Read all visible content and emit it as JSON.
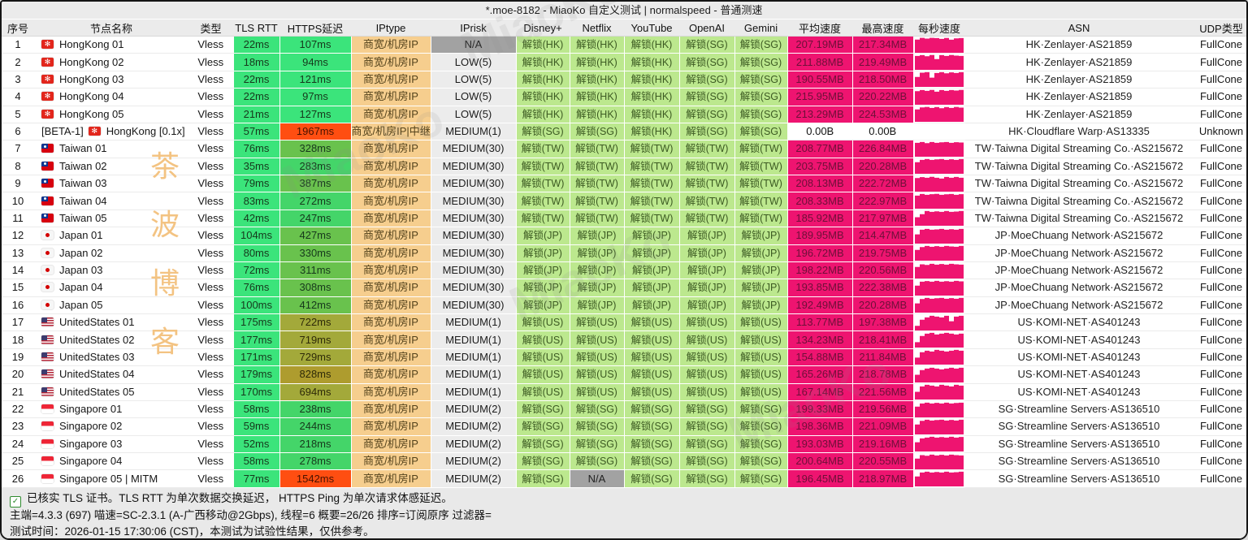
{
  "window": {
    "title": "*.moe-8182 - MiaoKo 自定义测试 | normalspeed - 普通测速"
  },
  "table": {
    "columns": [
      "序号",
      "节点名称",
      "类型",
      "TLS RTT",
      "HTTPS延迟",
      "IPtype",
      "IPrisk",
      "Disney+",
      "Netflix",
      "YouTube",
      "OpenAI",
      "Gemini",
      "平均速度",
      "最高速度",
      "每秒速度",
      "ASN",
      "UDP类型"
    ],
    "rows": [
      {
        "no": "1",
        "flag": "hk",
        "name": "HongKong 01",
        "type": "Vless",
        "tls": "22ms",
        "https": "107ms",
        "https_c": "g1",
        "iptype": "商宽/机房IP",
        "iprisk": "N/A",
        "svc": [
          "解锁(HK)",
          "解锁(HK)",
          "解锁(HK)",
          "解锁(SG)",
          "解锁(SG)"
        ],
        "avg": "207.19MB",
        "max": "217.34MB",
        "spark": [
          0.86,
          0.97,
          0.92,
          0.97,
          0.95,
          0.9,
          0.96,
          0.85,
          0.93,
          0.95
        ],
        "asn": "HK·Zenlayer·AS21859",
        "udp": "FullCone"
      },
      {
        "no": "2",
        "flag": "hk",
        "name": "HongKong 02",
        "type": "Vless",
        "tls": "18ms",
        "https": "94ms",
        "https_c": "g1",
        "iptype": "商宽/机房IP",
        "iprisk": "LOW(5)",
        "svc": [
          "解锁(HK)",
          "解锁(HK)",
          "解锁(HK)",
          "解锁(SG)",
          "解锁(SG)"
        ],
        "avg": "211.88MB",
        "max": "219.49MB",
        "spark": [
          0.9,
          0.95,
          0.88,
          0.96,
          0.7,
          0.95,
          0.9,
          0.96,
          0.92,
          0.9
        ],
        "asn": "HK·Zenlayer·AS21859",
        "udp": "FullCone"
      },
      {
        "no": "3",
        "flag": "hk",
        "name": "HongKong 03",
        "type": "Vless",
        "tls": "22ms",
        "https": "121ms",
        "https_c": "g1",
        "iptype": "商宽/机房IP",
        "iprisk": "LOW(5)",
        "svc": [
          "解锁(HK)",
          "解锁(HK)",
          "解锁(HK)",
          "解锁(SG)",
          "解锁(SG)"
        ],
        "avg": "190.55MB",
        "max": "218.50MB",
        "spark": [
          0.65,
          0.92,
          0.95,
          0.6,
          0.9,
          0.95,
          0.88,
          0.94,
          0.9,
          0.95
        ],
        "asn": "HK·Zenlayer·AS21859",
        "udp": "FullCone"
      },
      {
        "no": "4",
        "flag": "hk",
        "name": "HongKong 04",
        "type": "Vless",
        "tls": "22ms",
        "https": "97ms",
        "https_c": "g1",
        "iptype": "商宽/机房IP",
        "iprisk": "LOW(5)",
        "svc": [
          "解锁(HK)",
          "解锁(HK)",
          "解锁(HK)",
          "解锁(SG)",
          "解锁(SG)"
        ],
        "avg": "215.95MB",
        "max": "220.22MB",
        "spark": [
          0.88,
          0.95,
          0.9,
          0.96,
          0.85,
          0.95,
          0.9,
          0.95,
          0.92,
          0.96
        ],
        "asn": "HK·Zenlayer·AS21859",
        "udp": "FullCone"
      },
      {
        "no": "5",
        "flag": "hk",
        "name": "HongKong 05",
        "type": "Vless",
        "tls": "21ms",
        "https": "127ms",
        "https_c": "g1",
        "iptype": "商宽/机房IP",
        "iprisk": "LOW(5)",
        "svc": [
          "解锁(HK)",
          "解锁(HK)",
          "解锁(HK)",
          "解锁(SG)",
          "解锁(SG)"
        ],
        "avg": "213.29MB",
        "max": "224.53MB",
        "spark": [
          0.8,
          0.93,
          0.96,
          0.9,
          0.95,
          0.88,
          0.95,
          0.9,
          0.96,
          0.92
        ],
        "asn": "HK·Zenlayer·AS21859",
        "udp": "FullCone"
      },
      {
        "no": "6",
        "pre": "[BETA-1]",
        "flag": "hk",
        "name": "HongKong [0.1x]",
        "type": "Vless",
        "tls": "57ms",
        "https": "1967ms",
        "https_c": "red",
        "iptype": "商宽/机房IP|中继",
        "iprisk": "MEDIUM(1)",
        "svc": [
          "解锁(SG)",
          "解锁(SG)",
          "解锁(HK)",
          "解锁(SG)",
          "解锁(SG)"
        ],
        "avg": "0.00B",
        "max": "0.00B",
        "spark": [],
        "asn": "HK·Cloudflare Warp·AS13335",
        "udp": "Unknown"
      },
      {
        "no": "7",
        "flag": "tw",
        "name": "Taiwan 01",
        "type": "Vless",
        "tls": "76ms",
        "https": "328ms",
        "https_c": "g3",
        "iptype": "商宽/机房IP",
        "iprisk": "MEDIUM(30)",
        "svc": [
          "解锁(TW)",
          "解锁(TW)",
          "解锁(TW)",
          "解锁(TW)",
          "解锁(TW)"
        ],
        "avg": "208.77MB",
        "max": "226.84MB",
        "spark": [
          0.9,
          0.95,
          0.88,
          0.95,
          0.9,
          0.93,
          0.95,
          0.9,
          0.94,
          0.92
        ],
        "asn": "TW·Taiwna Digital Streaming Co.·AS215672",
        "udp": "FullCone"
      },
      {
        "no": "8",
        "flag": "tw",
        "name": "Taiwan 02",
        "type": "Vless",
        "tls": "35ms",
        "https": "283ms",
        "https_c": "g2",
        "iptype": "商宽/机房IP",
        "iprisk": "MEDIUM(30)",
        "svc": [
          "解锁(TW)",
          "解锁(TW)",
          "解锁(TW)",
          "解锁(TW)",
          "解锁(TW)"
        ],
        "avg": "203.75MB",
        "max": "220.28MB",
        "spark": [
          0.75,
          0.9,
          0.95,
          0.9,
          0.93,
          0.95,
          0.9,
          0.94,
          0.9,
          0.95
        ],
        "asn": "TW·Taiwna Digital Streaming Co.·AS215672",
        "udp": "FullCone"
      },
      {
        "no": "9",
        "flag": "tw",
        "name": "Taiwan 03",
        "type": "Vless",
        "tls": "79ms",
        "https": "387ms",
        "https_c": "g3",
        "iptype": "商宽/机房IP",
        "iprisk": "MEDIUM(30)",
        "svc": [
          "解锁(TW)",
          "解锁(TW)",
          "解锁(TW)",
          "解锁(TW)",
          "解锁(TW)"
        ],
        "avg": "208.13MB",
        "max": "222.72MB",
        "spark": [
          0.88,
          0.94,
          0.9,
          0.96,
          0.9,
          0.85,
          0.95,
          0.9,
          0.95,
          0.9
        ],
        "asn": "TW·Taiwna Digital Streaming Co.·AS215672",
        "udp": "FullCone"
      },
      {
        "no": "10",
        "flag": "tw",
        "name": "Taiwan 04",
        "type": "Vless",
        "tls": "83ms",
        "https": "272ms",
        "https_c": "g2",
        "iptype": "商宽/机房IP",
        "iprisk": "MEDIUM(30)",
        "svc": [
          "解锁(TW)",
          "解锁(TW)",
          "解锁(TW)",
          "解锁(TW)",
          "解锁(TW)"
        ],
        "avg": "208.33MB",
        "max": "222.97MB",
        "spark": [
          0.85,
          0.95,
          0.9,
          0.94,
          0.96,
          0.9,
          0.93,
          0.95,
          0.9,
          0.94
        ],
        "asn": "TW·Taiwna Digital Streaming Co.·AS215672",
        "udp": "FullCone"
      },
      {
        "no": "11",
        "flag": "tw",
        "name": "Taiwan 05",
        "type": "Vless",
        "tls": "42ms",
        "https": "247ms",
        "https_c": "g2",
        "iptype": "商宽/机房IP",
        "iprisk": "MEDIUM(30)",
        "svc": [
          "解锁(TW)",
          "解锁(TW)",
          "解锁(TW)",
          "解锁(TW)",
          "解锁(TW)"
        ],
        "avg": "185.92MB",
        "max": "217.97MB",
        "spark": [
          0.55,
          0.75,
          0.95,
          0.9,
          0.93,
          0.9,
          0.95,
          0.9,
          0.92,
          0.95
        ],
        "asn": "TW·Taiwna Digital Streaming Co.·AS215672",
        "udp": "FullCone"
      },
      {
        "no": "12",
        "flag": "jp",
        "name": "Japan 01",
        "type": "Vless",
        "tls": "104ms",
        "https": "427ms",
        "https_c": "g3",
        "iptype": "商宽/机房IP",
        "iprisk": "MEDIUM(30)",
        "svc": [
          "解锁(JP)",
          "解锁(JP)",
          "解锁(JP)",
          "解锁(JP)",
          "解锁(JP)"
        ],
        "avg": "189.95MB",
        "max": "214.47MB",
        "spark": [
          0.6,
          0.9,
          0.95,
          0.9,
          0.92,
          0.95,
          0.9,
          0.93,
          0.9,
          0.95
        ],
        "asn": "JP·MoeChuang Network·AS215672",
        "udp": "FullCone"
      },
      {
        "no": "13",
        "flag": "jp",
        "name": "Japan 02",
        "type": "Vless",
        "tls": "80ms",
        "https": "330ms",
        "https_c": "g3",
        "iptype": "商宽/机房IP",
        "iprisk": "MEDIUM(30)",
        "svc": [
          "解锁(JP)",
          "解锁(JP)",
          "解锁(JP)",
          "解锁(JP)",
          "解锁(JP)"
        ],
        "avg": "196.72MB",
        "max": "219.75MB",
        "spark": [
          0.7,
          0.88,
          0.95,
          0.9,
          0.94,
          0.9,
          0.95,
          0.92,
          0.9,
          0.95
        ],
        "asn": "JP·MoeChuang Network·AS215672",
        "udp": "FullCone"
      },
      {
        "no": "14",
        "flag": "jp",
        "name": "Japan 03",
        "type": "Vless",
        "tls": "72ms",
        "https": "311ms",
        "https_c": "g3",
        "iptype": "商宽/机房IP",
        "iprisk": "MEDIUM(30)",
        "svc": [
          "解锁(JP)",
          "解锁(JP)",
          "解锁(JP)",
          "解锁(JP)",
          "解锁(JP)"
        ],
        "avg": "198.22MB",
        "max": "220.56MB",
        "spark": [
          0.75,
          0.92,
          0.88,
          0.95,
          0.9,
          0.94,
          0.9,
          0.95,
          0.92,
          0.9
        ],
        "asn": "JP·MoeChuang Network·AS215672",
        "udp": "FullCone"
      },
      {
        "no": "15",
        "flag": "jp",
        "name": "Japan 04",
        "type": "Vless",
        "tls": "76ms",
        "https": "308ms",
        "https_c": "g3",
        "iptype": "商宽/机房IP",
        "iprisk": "MEDIUM(30)",
        "svc": [
          "解锁(JP)",
          "解锁(JP)",
          "解锁(JP)",
          "解锁(JP)",
          "解锁(JP)"
        ],
        "avg": "193.85MB",
        "max": "222.38MB",
        "spark": [
          0.65,
          0.9,
          0.94,
          0.9,
          0.95,
          0.9,
          0.93,
          0.9,
          0.95,
          0.92
        ],
        "asn": "JP·MoeChuang Network·AS215672",
        "udp": "FullCone"
      },
      {
        "no": "16",
        "flag": "jp",
        "name": "Japan 05",
        "type": "Vless",
        "tls": "100ms",
        "https": "412ms",
        "https_c": "g3",
        "iptype": "商宽/机房IP",
        "iprisk": "MEDIUM(30)",
        "svc": [
          "解锁(JP)",
          "解锁(JP)",
          "解锁(JP)",
          "解锁(JP)",
          "解锁(JP)"
        ],
        "avg": "192.49MB",
        "max": "220.28MB",
        "spark": [
          0.6,
          0.88,
          0.95,
          0.9,
          0.93,
          0.95,
          0.9,
          0.94,
          0.9,
          0.95
        ],
        "asn": "JP·MoeChuang Network·AS215672",
        "udp": "FullCone"
      },
      {
        "no": "17",
        "flag": "us",
        "name": "UnitedStates 01",
        "type": "Vless",
        "tls": "175ms",
        "https": "722ms",
        "https_c": "ol",
        "iptype": "商宽/机房IP",
        "iprisk": "MEDIUM(1)",
        "svc": [
          "解锁(US)",
          "解锁(US)",
          "解锁(US)",
          "解锁(US)",
          "解锁(US)"
        ],
        "avg": "113.77MB",
        "max": "197.38MB",
        "spark": [
          0.3,
          0.7,
          0.85,
          0.95,
          0.9,
          0.85,
          0.95,
          0.6,
          0.9,
          0.95
        ],
        "asn": "US·KOMI-NET·AS401243",
        "udp": "FullCone"
      },
      {
        "no": "18",
        "flag": "us",
        "name": "UnitedStates 02",
        "type": "Vless",
        "tls": "177ms",
        "https": "719ms",
        "https_c": "ol",
        "iptype": "商宽/机房IP",
        "iprisk": "MEDIUM(1)",
        "svc": [
          "解锁(US)",
          "解锁(US)",
          "解锁(US)",
          "解锁(US)",
          "解锁(US)"
        ],
        "avg": "134.23MB",
        "max": "218.41MB",
        "spark": [
          0.35,
          0.75,
          0.9,
          0.95,
          0.85,
          0.9,
          0.95,
          0.9,
          0.85,
          0.9
        ],
        "asn": "US·KOMI-NET·AS401243",
        "udp": "FullCone"
      },
      {
        "no": "19",
        "flag": "us",
        "name": "UnitedStates 03",
        "type": "Vless",
        "tls": "171ms",
        "https": "729ms",
        "https_c": "ol",
        "iptype": "商宽/机房IP",
        "iprisk": "MEDIUM(1)",
        "svc": [
          "解锁(US)",
          "解锁(US)",
          "解锁(US)",
          "解锁(US)",
          "解锁(US)"
        ],
        "avg": "154.88MB",
        "max": "211.84MB",
        "spark": [
          0.45,
          0.8,
          0.9,
          0.85,
          0.95,
          0.9,
          0.85,
          0.9,
          0.95,
          0.9
        ],
        "asn": "US·KOMI-NET·AS401243",
        "udp": "FullCone"
      },
      {
        "no": "20",
        "flag": "us",
        "name": "UnitedStates 04",
        "type": "Vless",
        "tls": "179ms",
        "https": "828ms",
        "https_c": "ol2",
        "iptype": "商宽/机房IP",
        "iprisk": "MEDIUM(1)",
        "svc": [
          "解锁(US)",
          "解锁(US)",
          "解锁(US)",
          "解锁(US)",
          "解锁(US)"
        ],
        "avg": "165.26MB",
        "max": "218.78MB",
        "spark": [
          0.5,
          0.8,
          0.9,
          0.95,
          0.9,
          0.85,
          0.9,
          0.95,
          0.9,
          0.95
        ],
        "asn": "US·KOMI-NET·AS401243",
        "udp": "FullCone"
      },
      {
        "no": "21",
        "flag": "us",
        "name": "UnitedStates 05",
        "type": "Vless",
        "tls": "170ms",
        "https": "694ms",
        "https_c": "ol",
        "iptype": "商宽/机房IP",
        "iprisk": "MEDIUM(1)",
        "svc": [
          "解锁(US)",
          "解锁(US)",
          "解锁(US)",
          "解锁(US)",
          "解锁(US)"
        ],
        "avg": "167.14MB",
        "max": "221.56MB",
        "spark": [
          0.5,
          0.85,
          0.95,
          0.9,
          0.85,
          0.95,
          0.9,
          0.85,
          0.95,
          0.9
        ],
        "asn": "US·KOMI-NET·AS401243",
        "udp": "FullCone"
      },
      {
        "no": "22",
        "flag": "sg",
        "name": "Singapore 01",
        "type": "Vless",
        "tls": "58ms",
        "https": "238ms",
        "https_c": "g2",
        "iptype": "商宽/机房IP",
        "iprisk": "MEDIUM(2)",
        "svc": [
          "解锁(SG)",
          "解锁(SG)",
          "解锁(SG)",
          "解锁(SG)",
          "解锁(SG)"
        ],
        "avg": "199.33MB",
        "max": "219.56MB",
        "spark": [
          0.7,
          0.9,
          0.95,
          0.9,
          0.94,
          0.9,
          0.95,
          0.9,
          0.93,
          0.95
        ],
        "asn": "SG·Streamline Servers·AS136510",
        "udp": "FullCone"
      },
      {
        "no": "23",
        "flag": "sg",
        "name": "Singapore 02",
        "type": "Vless",
        "tls": "59ms",
        "https": "244ms",
        "https_c": "g2",
        "iptype": "商宽/机房IP",
        "iprisk": "MEDIUM(2)",
        "svc": [
          "解锁(SG)",
          "解锁(SG)",
          "解锁(SG)",
          "解锁(SG)",
          "解锁(SG)"
        ],
        "avg": "198.36MB",
        "max": "221.09MB",
        "spark": [
          0.65,
          0.88,
          0.95,
          0.9,
          0.93,
          0.95,
          0.9,
          0.94,
          0.9,
          0.95
        ],
        "asn": "SG·Streamline Servers·AS136510",
        "udp": "FullCone"
      },
      {
        "no": "24",
        "flag": "sg",
        "name": "Singapore 03",
        "type": "Vless",
        "tls": "52ms",
        "https": "218ms",
        "https_c": "g2",
        "iptype": "商宽/机房IP",
        "iprisk": "MEDIUM(2)",
        "svc": [
          "解锁(SG)",
          "解锁(SG)",
          "解锁(SG)",
          "解锁(SG)",
          "解锁(SG)"
        ],
        "avg": "193.03MB",
        "max": "219.16MB",
        "spark": [
          0.6,
          0.85,
          0.9,
          0.95,
          0.9,
          0.93,
          0.9,
          0.95,
          0.9,
          0.94
        ],
        "asn": "SG·Streamline Servers·AS136510",
        "udp": "FullCone"
      },
      {
        "no": "25",
        "flag": "sg",
        "name": "Singapore 04",
        "type": "Vless",
        "tls": "58ms",
        "https": "278ms",
        "https_c": "g2",
        "iptype": "商宽/机房IP",
        "iprisk": "MEDIUM(2)",
        "svc": [
          "解锁(SG)",
          "解锁(SG)",
          "解锁(SG)",
          "解锁(SG)",
          "解锁(SG)"
        ],
        "avg": "200.64MB",
        "max": "220.55MB",
        "spark": [
          0.7,
          0.92,
          0.88,
          0.95,
          0.9,
          0.94,
          0.9,
          0.95,
          0.92,
          0.9
        ],
        "asn": "SG·Streamline Servers·AS136510",
        "udp": "FullCone"
      },
      {
        "no": "26",
        "flag": "sg",
        "name": "Singapore 05 | MITM",
        "type": "Vless",
        "tls": "77ms",
        "https": "1542ms",
        "https_c": "red",
        "iptype": "商宽/机房IP",
        "iprisk": "MEDIUM(2)",
        "svc": [
          "解锁(SG)",
          "N/A",
          "解锁(SG)",
          "解锁(SG)",
          "解锁(SG)"
        ],
        "avg": "196.45MB",
        "max": "218.97MB",
        "spark": [
          0.65,
          0.9,
          0.95,
          0.9,
          0.93,
          0.9,
          0.95,
          0.9,
          0.92,
          0.95
        ],
        "asn": "SG·Streamline Servers·AS136510",
        "udp": "FullCone"
      }
    ]
  },
  "footer": {
    "check_glyph": "✓",
    "line1": "已核实 TLS 证书。TLS RTT 为单次数据交换延迟， HTTPS Ping 为单次请求体感延迟。",
    "line2": "主端=4.3.3 (697) 喵速=SC-2.3.1 (A-广西移动@2Gbps), 线程=6 概要=26/26 排序=订阅原序 过滤器=",
    "line3": "测试时间：2026-01-15 17:30:06 (CST)，本测试为试验性结果，仅供参考。"
  },
  "watermark": {
    "vertical_chars": [
      "茶",
      "波",
      "博",
      "客"
    ],
    "diagonal_text": "MiaoKo"
  },
  "colors": {
    "green-fast": "#3be47b",
    "green-mid": "#44d569",
    "green-slow": "#69c24d",
    "olive": "#a3a93a",
    "olive-dark": "#ae9c2e",
    "red-slow": "#ff4e11",
    "pink": "#ee1470",
    "pink-text": "#6d1038",
    "unlock-green": "#bce88e",
    "unlock-text": "#3c5a22",
    "iptype-orange": "#f6ce8e",
    "na-gray": "#a2a2a2",
    "header-gray": "#ebebeb",
    "footer-gray": "#e9e9e9",
    "watermark-orange": "#f3c382"
  }
}
